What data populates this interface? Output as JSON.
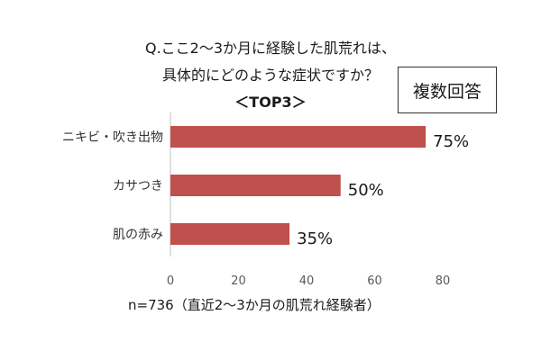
{
  "title": {
    "line1": "Q.ここ2～3か月に経験した肌荒れは、",
    "line2": "具体的にどのような症状ですか？",
    "line3": "＜TOP3＞"
  },
  "badge": "複数回答",
  "note": "n=736（直近2～3か月の肌荒れ経験者）",
  "colors": {
    "bar": "#c0504d",
    "axis": "#bfbfbf",
    "text": "#1a1a1a"
  },
  "chart_data": {
    "type": "bar",
    "orientation": "horizontal",
    "categories": [
      "ニキビ・吹き出物",
      "カサつき",
      "肌の赤み"
    ],
    "values": [
      75,
      50,
      35
    ],
    "data_labels": [
      "75%",
      "50%",
      "35%"
    ],
    "xlim": [
      0,
      80
    ],
    "xticks": [
      0,
      20,
      40,
      60,
      80
    ],
    "grid": false,
    "legend": "none"
  }
}
